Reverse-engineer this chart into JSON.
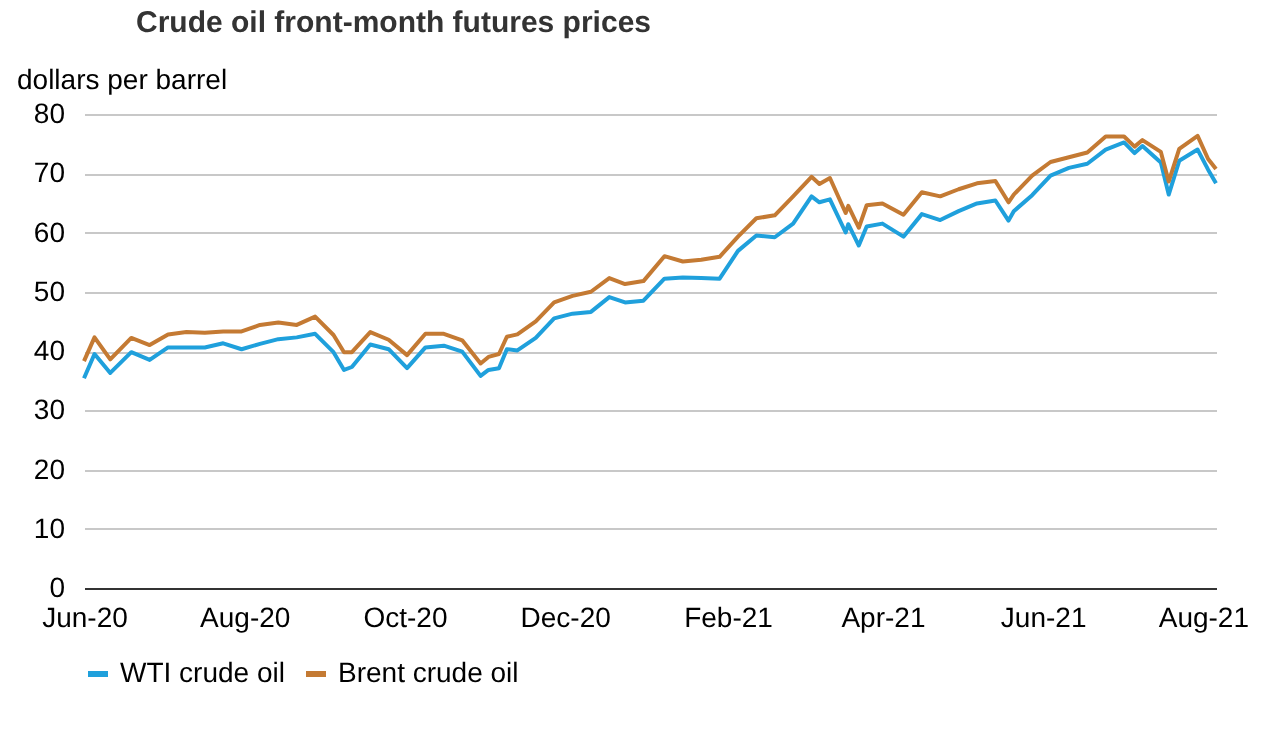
{
  "chart_data": {
    "type": "line",
    "title": "Crude oil front-month futures prices",
    "ylabel": "dollars per barrel",
    "x": [
      "2020-06-01",
      "2020-06-05",
      "2020-06-11",
      "2020-06-19",
      "2020-06-26",
      "2020-07-03",
      "2020-07-10",
      "2020-07-17",
      "2020-07-24",
      "2020-07-31",
      "2020-08-07",
      "2020-08-14",
      "2020-08-21",
      "2020-08-28",
      "2020-09-04",
      "2020-09-08",
      "2020-09-11",
      "2020-09-18",
      "2020-09-25",
      "2020-10-02",
      "2020-10-09",
      "2020-10-16",
      "2020-10-23",
      "2020-10-30",
      "2020-11-02",
      "2020-11-06",
      "2020-11-09",
      "2020-11-13",
      "2020-11-20",
      "2020-11-27",
      "2020-12-04",
      "2020-12-11",
      "2020-12-18",
      "2020-12-24",
      "2020-12-31",
      "2021-01-08",
      "2021-01-15",
      "2021-01-22",
      "2021-01-29",
      "2021-02-05",
      "2021-02-12",
      "2021-02-19",
      "2021-02-26",
      "2021-03-05",
      "2021-03-08",
      "2021-03-12",
      "2021-03-18",
      "2021-03-19",
      "2021-03-23",
      "2021-03-26",
      "2021-04-01",
      "2021-04-09",
      "2021-04-16",
      "2021-04-23",
      "2021-04-30",
      "2021-05-07",
      "2021-05-14",
      "2021-05-19",
      "2021-05-21",
      "2021-05-28",
      "2021-06-04",
      "2021-06-11",
      "2021-06-18",
      "2021-06-25",
      "2021-07-02",
      "2021-07-06",
      "2021-07-09",
      "2021-07-16",
      "2021-07-19",
      "2021-07-23",
      "2021-07-30",
      "2021-08-03",
      "2021-08-06"
    ],
    "series": [
      {
        "name": "WTI crude oil",
        "color": "#1fa0dc",
        "values": [
          35.4,
          39.5,
          36.3,
          39.8,
          38.5,
          40.6,
          40.6,
          40.6,
          41.3,
          40.3,
          41.2,
          42.0,
          42.3,
          42.9,
          39.8,
          36.8,
          37.3,
          41.1,
          40.3,
          37.1,
          40.6,
          40.9,
          39.9,
          35.8,
          36.8,
          37.1,
          40.3,
          40.1,
          42.2,
          45.5,
          46.3,
          46.6,
          49.1,
          48.2,
          48.5,
          52.2,
          52.4,
          52.3,
          52.2,
          56.9,
          59.5,
          59.2,
          61.5,
          66.1,
          65.1,
          65.6,
          60.0,
          61.4,
          57.8,
          61.0,
          61.5,
          59.3,
          63.1,
          62.1,
          63.6,
          64.9,
          65.4,
          62.0,
          63.6,
          66.3,
          69.6,
          70.9,
          71.6,
          74.0,
          75.2,
          73.4,
          74.6,
          71.8,
          66.4,
          72.1,
          74.0,
          70.6,
          68.3
        ]
      },
      {
        "name": "Brent crude oil",
        "color": "#c47a33",
        "values": [
          38.3,
          42.3,
          38.6,
          42.2,
          41.0,
          42.8,
          43.2,
          43.1,
          43.3,
          43.3,
          44.4,
          44.8,
          44.4,
          45.8,
          42.7,
          39.8,
          39.8,
          43.2,
          41.9,
          39.3,
          42.9,
          42.9,
          41.8,
          37.9,
          39.0,
          39.5,
          42.4,
          42.8,
          45.0,
          48.2,
          49.3,
          50.0,
          52.3,
          51.3,
          51.8,
          56.0,
          55.1,
          55.4,
          55.9,
          59.3,
          62.4,
          62.9,
          66.1,
          69.4,
          68.2,
          69.2,
          63.3,
          64.5,
          60.8,
          64.6,
          64.9,
          63.0,
          66.8,
          66.1,
          67.3,
          68.3,
          68.7,
          65.1,
          66.4,
          69.6,
          71.9,
          72.7,
          73.5,
          76.2,
          76.2,
          74.5,
          75.6,
          73.6,
          68.6,
          74.1,
          76.3,
          72.4,
          70.7
        ]
      }
    ],
    "xlim": [
      "2020-06-01",
      "2021-08-06"
    ],
    "xticks": [
      {
        "value": "2020-06-01",
        "label": "Jun-20"
      },
      {
        "value": "2020-08-01",
        "label": "Aug-20"
      },
      {
        "value": "2020-10-01",
        "label": "Oct-20"
      },
      {
        "value": "2020-12-01",
        "label": "Dec-20"
      },
      {
        "value": "2021-02-01",
        "label": "Feb-21"
      },
      {
        "value": "2021-04-01",
        "label": "Apr-21"
      },
      {
        "value": "2021-06-01",
        "label": "Jun-21"
      },
      {
        "value": "2021-08-01",
        "label": "Aug-21"
      }
    ],
    "ylim": [
      0,
      80
    ],
    "yticks": [
      0,
      10,
      20,
      30,
      40,
      50,
      60,
      70,
      80
    ],
    "grid": "y",
    "legend": "bottom",
    "line_style": "solid"
  }
}
